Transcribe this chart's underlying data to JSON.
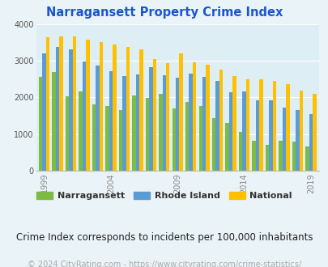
{
  "title": "Narragansett Property Crime Index",
  "title_color": "#1a56cc",
  "subtitle": "Crime Index corresponds to incidents per 100,000 inhabitants",
  "footer": "© 2024 CityRating.com - https://www.cityrating.com/crime-statistics/",
  "years": [
    1999,
    2000,
    2001,
    2002,
    2003,
    2004,
    2005,
    2006,
    2007,
    2008,
    2009,
    2010,
    2011,
    2012,
    2013,
    2014,
    2015,
    2016,
    2017,
    2018,
    2019
  ],
  "narragansett": [
    2560,
    2700,
    2040,
    2160,
    1810,
    1760,
    1660,
    2060,
    1980,
    2090,
    1710,
    1870,
    1770,
    1440,
    1300,
    1060,
    830,
    700,
    830,
    800,
    670
  ],
  "rhode_island": [
    3190,
    3380,
    3300,
    2990,
    2880,
    2720,
    2590,
    2620,
    2830,
    2600,
    2540,
    2650,
    2570,
    2440,
    2150,
    2160,
    1920,
    1930,
    1730,
    1650,
    1540
  ],
  "national": [
    3630,
    3660,
    3660,
    3580,
    3500,
    3440,
    3380,
    3320,
    3050,
    2940,
    3200,
    2950,
    2890,
    2750,
    2590,
    2500,
    2500,
    2450,
    2360,
    2190,
    2100
  ],
  "narragansett_color": "#7dbb42",
  "rhode_island_color": "#5b9bd5",
  "national_color": "#ffc000",
  "bg_color": "#eaf4f8",
  "plot_bg_color": "#ddeef5",
  "ylim": [
    0,
    4000
  ],
  "yticks": [
    0,
    1000,
    2000,
    3000,
    4000
  ],
  "legend_labels": [
    "Narragansett",
    "Rhode Island",
    "National"
  ],
  "subtitle_color": "#222222",
  "footer_color": "#aaaaaa",
  "subtitle_fontsize": 8.5,
  "footer_fontsize": 7
}
